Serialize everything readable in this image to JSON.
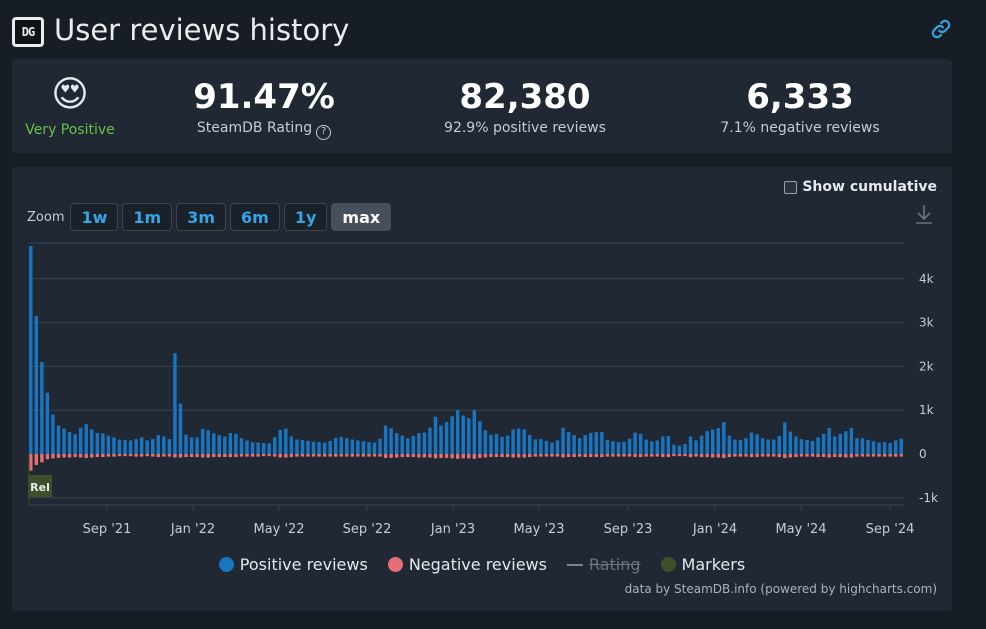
{
  "header": {
    "logo_text": "DG",
    "title": "User reviews history"
  },
  "stats": {
    "emoji": "😍",
    "verdict": "Very Positive",
    "rating_value": "91.47%",
    "rating_label": "SteamDB Rating",
    "positive_value": "82,380",
    "positive_label": "92.9% positive reviews",
    "negative_value": "6,333",
    "negative_label": "7.1% negative reviews"
  },
  "chart_controls": {
    "show_cumulative": "Show cumulative",
    "zoom_label": "Zoom",
    "zoom_buttons": [
      "1w",
      "1m",
      "3m",
      "6m",
      "1y",
      "max"
    ],
    "active_zoom": "max"
  },
  "legend": {
    "positive": "Positive reviews",
    "negative": "Negative reviews",
    "rating": "Rating",
    "markers": "Markers"
  },
  "credits": "data by SteamDB.info (powered by highcharts.com)",
  "colors": {
    "positive": "#1a75c0",
    "negative": "#e46f76",
    "markers": "#3e4f2a",
    "accent": "#36a3e6",
    "verdict": "#6cc04a"
  },
  "chart_data": {
    "type": "bar",
    "x_axis_labels": [
      "Sep '21",
      "Jan '22",
      "May '22",
      "Sep '22",
      "Jan '23",
      "May '23",
      "Sep '23",
      "Jan '24",
      "May '24",
      "Sep '24"
    ],
    "y_axis_labels": [
      "-1k",
      "0",
      "1k",
      "2k",
      "3k",
      "4k"
    ],
    "ylim": [
      -1000,
      4500
    ],
    "marker_label": "Rel",
    "series": [
      {
        "name": "Positive reviews",
        "values": [
          4750,
          3150,
          2100,
          1400,
          900,
          650,
          580,
          500,
          450,
          600,
          680,
          560,
          480,
          470,
          420,
          380,
          330,
          320,
          310,
          340,
          380,
          310,
          340,
          430,
          400,
          340,
          2300,
          1150,
          440,
          380,
          380,
          570,
          540,
          470,
          430,
          400,
          480,
          460,
          360,
          310,
          270,
          260,
          250,
          240,
          380,
          550,
          580,
          400,
          330,
          320,
          300,
          280,
          270,
          260,
          300,
          370,
          390,
          360,
          330,
          310,
          290,
          270,
          260,
          350,
          650,
          590,
          480,
          420,
          360,
          410,
          480,
          490,
          600,
          850,
          650,
          730,
          860,
          1000,
          880,
          820,
          1000,
          750,
          540,
          440,
          460,
          390,
          420,
          560,
          580,
          560,
          430,
          330,
          340,
          300,
          260,
          310,
          600,
          500,
          430,
          360,
          430,
          480,
          500,
          500,
          320,
          290,
          270,
          280,
          350,
          490,
          460,
          330,
          290,
          310,
          400,
          410,
          210,
          190,
          230,
          400,
          310,
          420,
          520,
          560,
          590,
          730,
          420,
          330,
          320,
          360,
          490,
          450,
          360,
          330,
          330,
          410,
          720,
          510,
          400,
          340,
          320,
          300,
          380,
          460,
          590,
          400,
          460,
          520,
          590,
          360,
          360,
          320,
          290,
          260,
          270,
          250,
          310,
          350
        ]
      },
      {
        "name": "Negative reviews",
        "values": [
          -380,
          -250,
          -190,
          -120,
          -100,
          -90,
          -80,
          -80,
          -70,
          -80,
          -90,
          -80,
          -70,
          -70,
          -60,
          -60,
          -50,
          -50,
          -50,
          -60,
          -60,
          -50,
          -60,
          -70,
          -60,
          -60,
          -80,
          -80,
          -70,
          -70,
          -70,
          -80,
          -80,
          -70,
          -70,
          -70,
          -70,
          -70,
          -60,
          -60,
          -60,
          -60,
          -50,
          -50,
          -60,
          -80,
          -80,
          -70,
          -60,
          -60,
          -60,
          -60,
          -60,
          -60,
          -60,
          -60,
          -60,
          -60,
          -60,
          -60,
          -60,
          -60,
          -60,
          -60,
          -90,
          -90,
          -80,
          -70,
          -70,
          -70,
          -80,
          -80,
          -80,
          -100,
          -90,
          -90,
          -100,
          -110,
          -100,
          -100,
          -110,
          -90,
          -80,
          -70,
          -70,
          -70,
          -70,
          -80,
          -80,
          -80,
          -70,
          -60,
          -60,
          -60,
          -60,
          -60,
          -80,
          -70,
          -70,
          -60,
          -70,
          -70,
          -70,
          -70,
          -60,
          -60,
          -60,
          -60,
          -60,
          -70,
          -70,
          -60,
          -60,
          -60,
          -70,
          -70,
          -50,
          -50,
          -50,
          -70,
          -60,
          -70,
          -70,
          -80,
          -80,
          -90,
          -70,
          -60,
          -60,
          -60,
          -70,
          -70,
          -60,
          -60,
          -60,
          -70,
          -90,
          -80,
          -70,
          -60,
          -60,
          -60,
          -70,
          -70,
          -80,
          -70,
          -70,
          -80,
          -80,
          -60,
          -60,
          -60,
          -60,
          -60,
          -60,
          -60,
          -60,
          -60
        ]
      }
    ]
  }
}
